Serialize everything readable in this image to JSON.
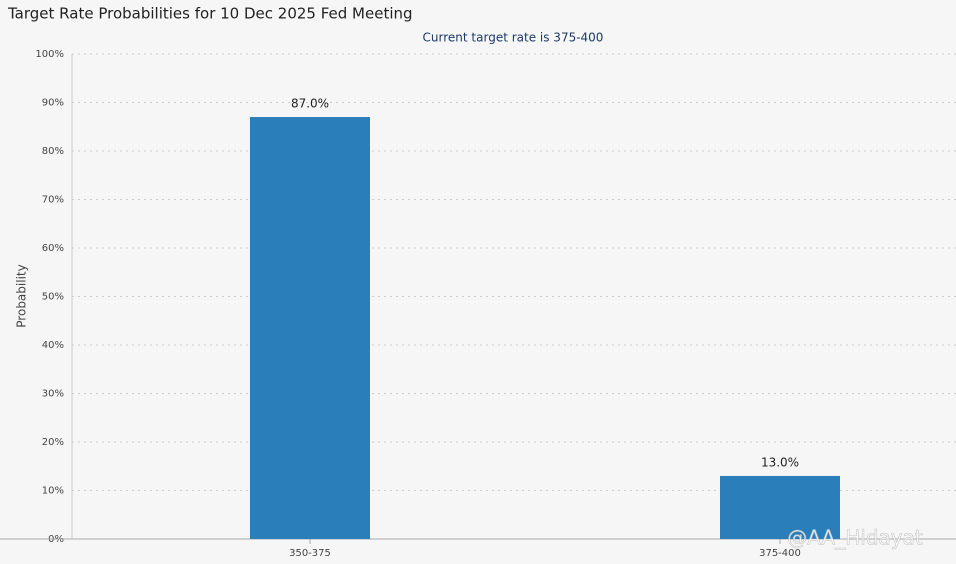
{
  "chart_data": {
    "type": "bar",
    "title": "Target Rate Probabilities for 10 Dec 2025 Fed Meeting",
    "subtitle": "Current target rate is 375-400",
    "y_label": "Probability",
    "categories": [
      "350-375",
      "375-400"
    ],
    "values": [
      87,
      13
    ],
    "value_labels": [
      "87.0%",
      "13.0%"
    ],
    "color": "#2a7fba",
    "ylim": [
      0,
      100
    ],
    "yticks": [
      {
        "value": 0,
        "label": "0%"
      },
      {
        "value": 10,
        "label": "10%"
      },
      {
        "value": 20,
        "label": "20%"
      },
      {
        "value": 30,
        "label": "30%"
      },
      {
        "value": 40,
        "label": "40%"
      },
      {
        "value": 50,
        "label": "50%"
      },
      {
        "value": 60,
        "label": "60%"
      },
      {
        "value": 70,
        "label": "70%"
      },
      {
        "value": 80,
        "label": "80%"
      },
      {
        "value": 90,
        "label": "90%"
      },
      {
        "value": 100,
        "label": "100%"
      }
    ],
    "grid": true,
    "watermark": "@AA_Hidayat"
  }
}
